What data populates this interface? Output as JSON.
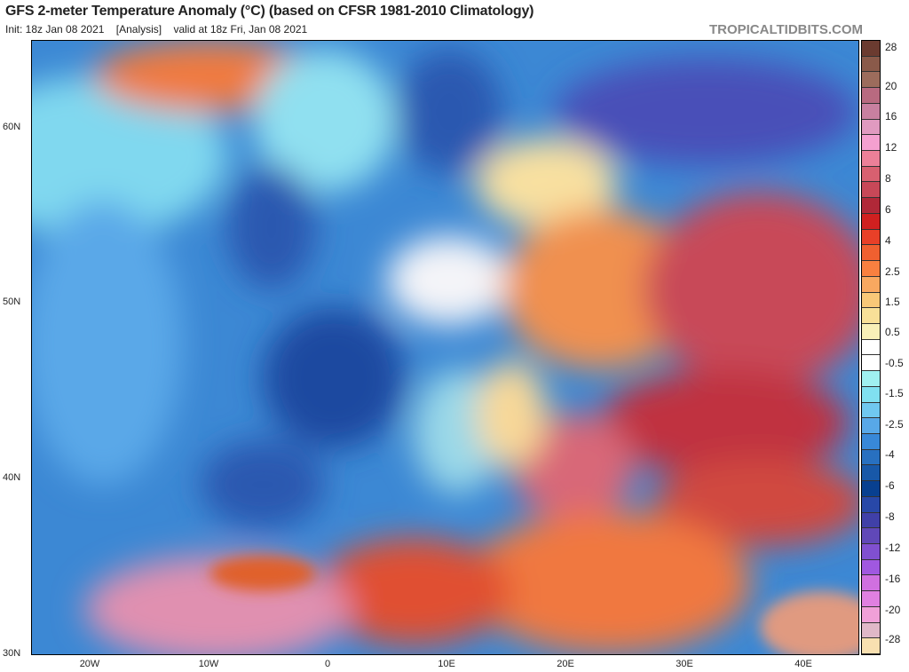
{
  "header": {
    "title": "GFS 2-meter Temperature Anomaly (°C) (based on CFSR 1981-2010 Climatology)",
    "init": "Init: 18z Jan 08 2021",
    "analysis": "[Analysis]",
    "valid": "valid at 18z Fri, Jan 08 2021",
    "brand": "TROPICALTIDBITS.COM"
  },
  "axes": {
    "lat_labels": [
      "60N",
      "50N",
      "40N",
      "30N"
    ],
    "lon_labels": [
      "20W",
      "10W",
      "0",
      "10E",
      "20E",
      "30E",
      "40E"
    ]
  },
  "colorbar": {
    "labels": [
      "28",
      "20",
      "16",
      "12",
      "8",
      "6",
      "4",
      "2.5",
      "1.5",
      "0.5",
      "-0.5",
      "-1.5",
      "-2.5",
      "-4",
      "-6",
      "-8",
      "-12",
      "-16",
      "-20",
      "-28"
    ],
    "colors": [
      "#6b3b30",
      "#8a5a4a",
      "#9c6c5c",
      "#b86a80",
      "#c880a0",
      "#e09ac0",
      "#f4a0d0",
      "#ec8098",
      "#d86070",
      "#c84858",
      "#b02838",
      "#d02020",
      "#e84028",
      "#f06030",
      "#f88040",
      "#f8a860",
      "#f8c878",
      "#f8e098",
      "#f8f0b8",
      "#ffffff",
      "#ffffff",
      "#a0f0f0",
      "#80e0f0",
      "#70c8f0",
      "#58a8e8",
      "#3888d8",
      "#2870c0",
      "#1858a8",
      "#084090",
      "#2848a8",
      "#4040a8",
      "#6048b8",
      "#8050d0",
      "#a058e0",
      "#d070e0",
      "#e080e0",
      "#f0a0d8",
      "#e0b8c8",
      "#f8e0b0"
    ]
  }
}
